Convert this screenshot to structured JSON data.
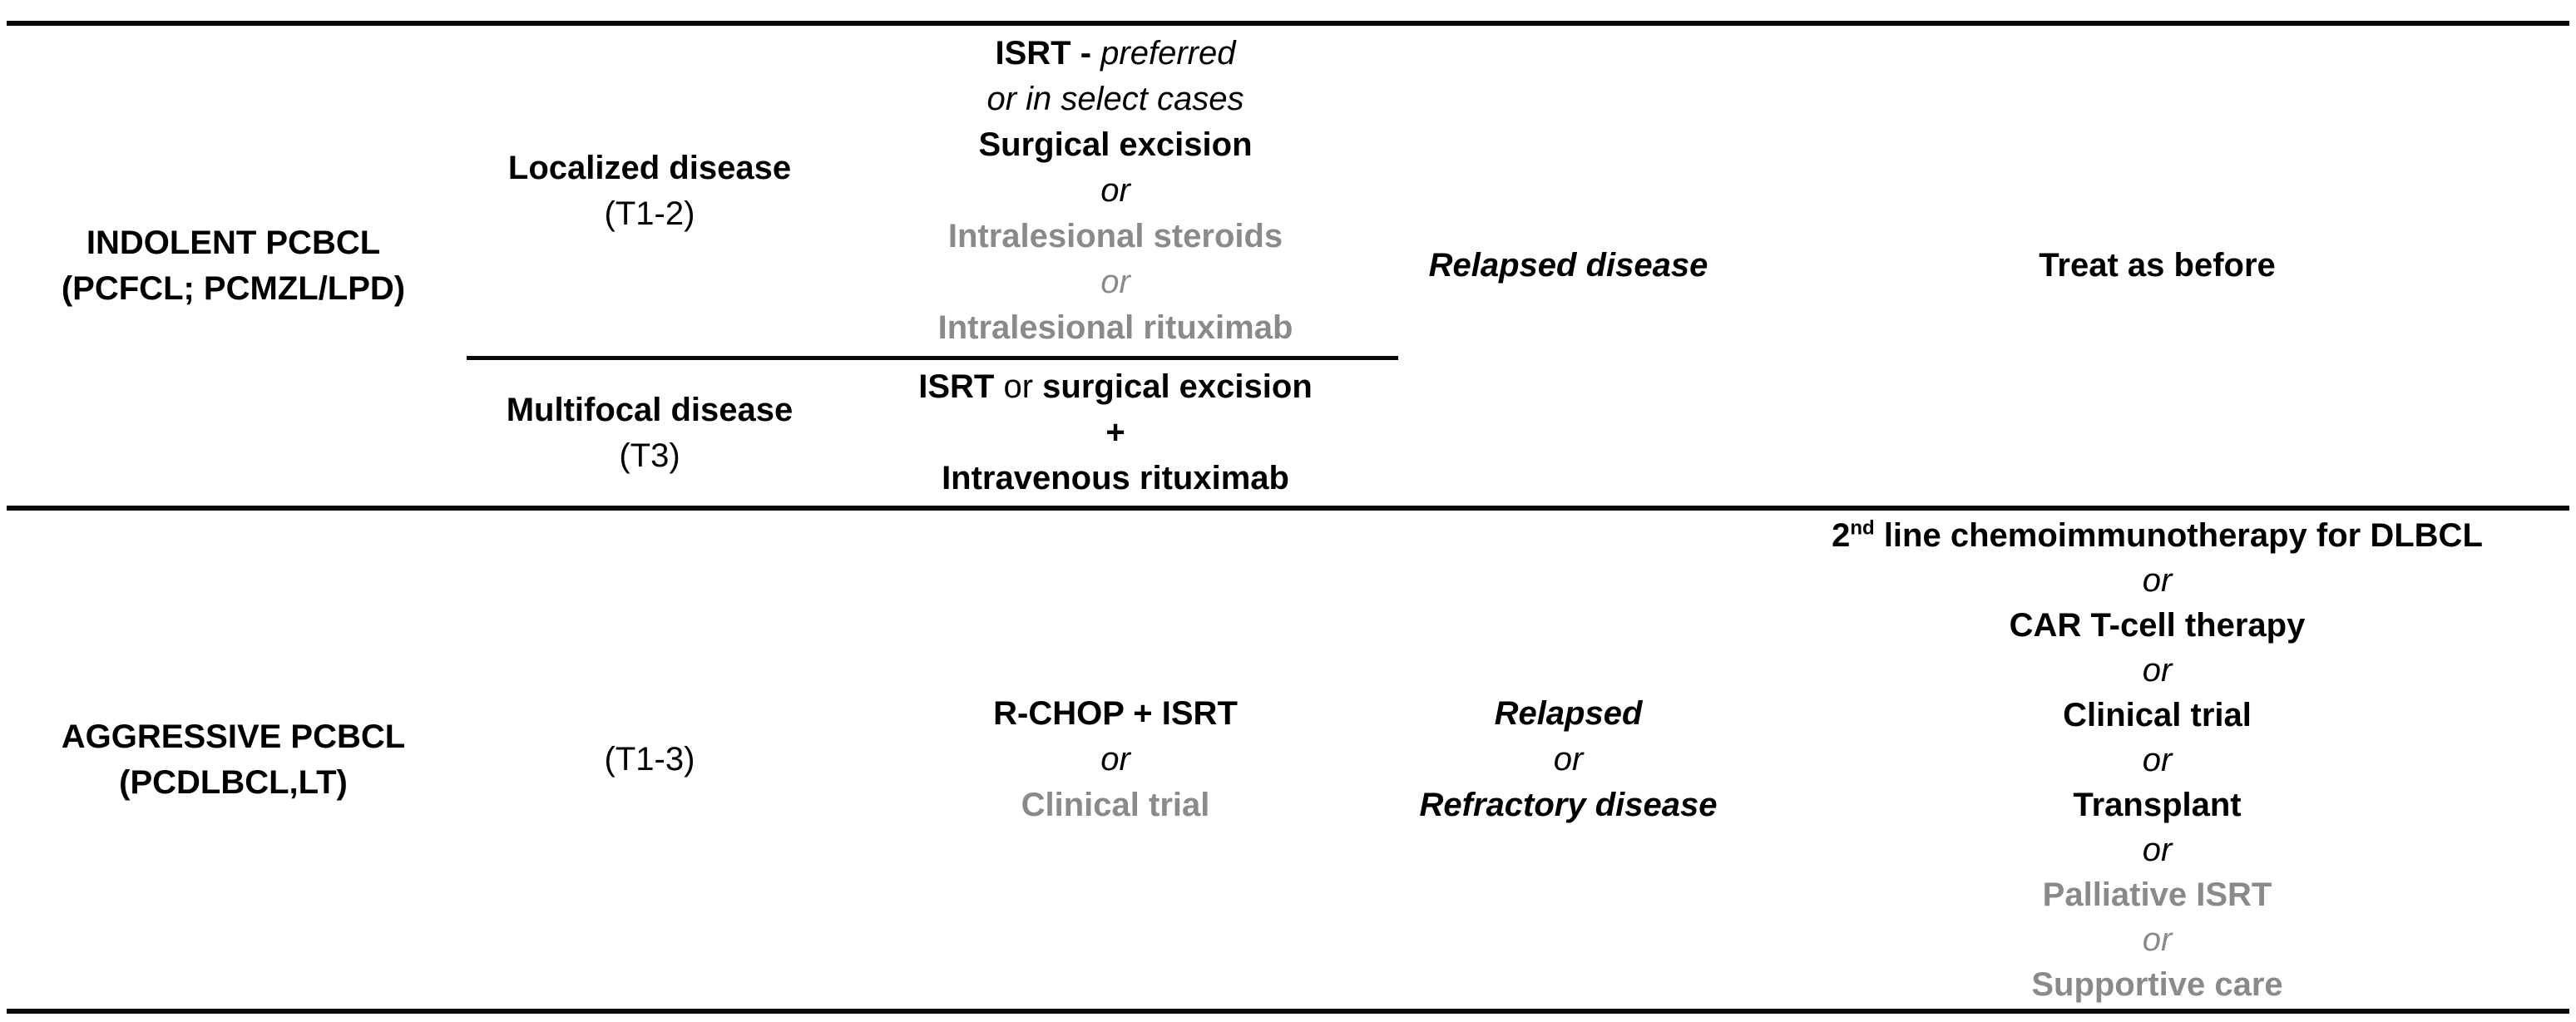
{
  "colors": {
    "muted": "#8a8a8a",
    "text": "#000000",
    "rule": "#0a0a0a"
  },
  "indolent": {
    "label_line1": "INDOLENT PCBCL",
    "label_line2": "(PCFCL; PCMZL/LPD)",
    "localized": {
      "extent_line1": "Localized disease",
      "extent_line2": "(T1-2)",
      "treatment": {
        "isrt": "ISRT -",
        "preferred": "preferred",
        "select_cases": "or in select cases",
        "surgical": "Surgical excision",
        "or1": "or",
        "steroids": "Intralesional steroids",
        "or2": "or",
        "rituximab": "Intralesional rituximab"
      }
    },
    "multifocal": {
      "extent_line1": "Multifocal disease",
      "extent_line2": "(T3)",
      "treatment": {
        "isrt": "ISRT",
        "or": "or",
        "surgical": "surgical excision",
        "plus": "+",
        "iv_rituximab": "Intravenous rituximab"
      }
    },
    "relapse": "Relapsed disease",
    "relapse_treatment": "Treat as before"
  },
  "aggressive": {
    "label_line1": "AGGRESSIVE PCBCL",
    "label_line2": "(PCDLBCL,LT)",
    "extent": "(T1-3)",
    "treatment": {
      "rchop": "R-CHOP + ISRT",
      "or": "or",
      "trial": "Clinical trial"
    },
    "relapse": {
      "line1": "Relapsed",
      "or": "or",
      "line2": "Refractory disease"
    },
    "relapse_treatment": {
      "line1_num": "2",
      "line1_sup": "nd",
      "line1_rest": " line chemoimmunotherapy for DLBCL",
      "or1": "or",
      "car": "CAR T-cell therapy",
      "or2": "or",
      "trial": "Clinical trial",
      "or3": "or",
      "transplant": "Transplant",
      "or4": "or",
      "palliative": "Palliative ISRT",
      "or5": "or",
      "supportive": "Supportive care"
    }
  }
}
